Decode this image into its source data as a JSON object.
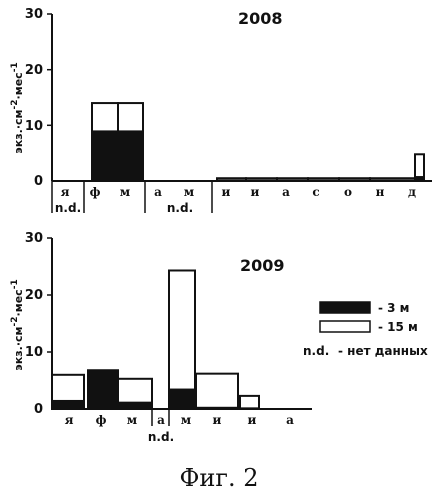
{
  "figure": {
    "caption": "Фиг. 2",
    "nd_label": "n.d.",
    "ylabel": {
      "main": "экз.·см",
      "exp1": "-2",
      "mid": "·мес",
      "exp2": "-1"
    },
    "legend": [
      {
        "label": "- 3 м",
        "fill": "#111111"
      },
      {
        "label": "- 15 м",
        "fill": "#ffffff"
      },
      {
        "label": "n.d.",
        "desc": "- нет данных"
      }
    ]
  },
  "chart_data": [
    {
      "type": "bar",
      "title": "2008",
      "ylim": [
        0,
        30
      ],
      "yticks": [
        0,
        10,
        20,
        30
      ],
      "months": [
        "я",
        "ф",
        "м",
        "а",
        "м",
        "и",
        "и",
        "а",
        "с",
        "о",
        "н",
        "д"
      ],
      "series": [
        {
          "name": "3 м",
          "values": [
            null,
            9,
            9,
            null,
            null,
            0.2,
            0.2,
            0.2,
            0.2,
            0.2,
            0.2,
            0.8
          ]
        },
        {
          "name": "15 м",
          "values": [
            null,
            14,
            14,
            null,
            null,
            0.5,
            0.5,
            0.5,
            0.5,
            0.5,
            0.5,
            4.8
          ]
        }
      ]
    },
    {
      "type": "bar",
      "title": "2009",
      "ylim": [
        0,
        30
      ],
      "yticks": [
        0,
        10,
        20,
        30
      ],
      "months": [
        "я",
        "ф",
        "м",
        "а",
        "м",
        "и",
        "и",
        "а"
      ],
      "series": [
        {
          "name": "3 м",
          "values": [
            1.5,
            6.8,
            1.2,
            null,
            3.5,
            0.3,
            0.2,
            null
          ]
        },
        {
          "name": "15 м",
          "values": [
            6,
            6.8,
            5.3,
            null,
            24.3,
            6.2,
            2.3,
            null
          ]
        }
      ]
    }
  ]
}
